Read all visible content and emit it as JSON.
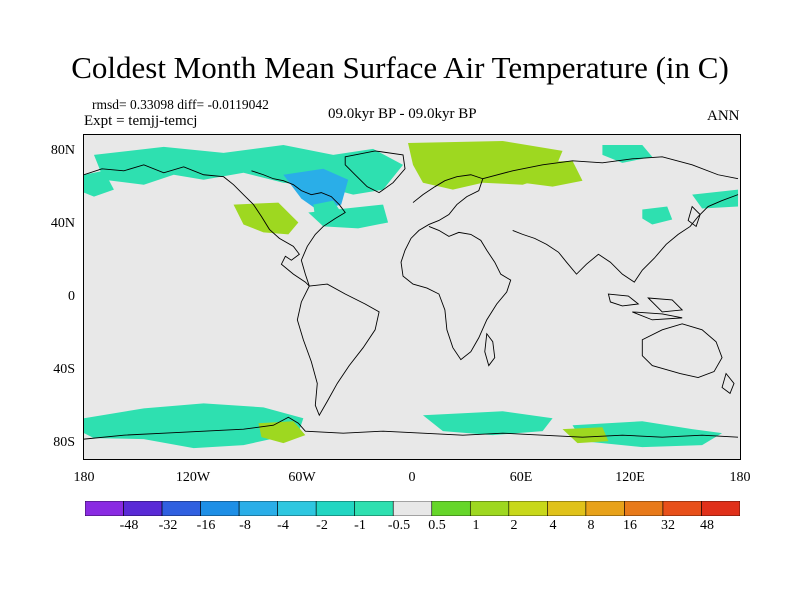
{
  "title": "Coldest Month Mean Surface Air Temperature (in C)",
  "stats": "rmsd= 0.33098 diff= -0.0119042",
  "expt": "Expt = temjj-temcj",
  "period": "09.0kyr BP - 09.0kyr BP",
  "season": "ANN",
  "lat_labels": [
    "80N",
    "40N",
    "0",
    "40S",
    "80S"
  ],
  "lon_labels": [
    "180",
    "120W",
    "60W",
    "0",
    "60E",
    "120E",
    "180"
  ],
  "colorbar": {
    "labels": [
      "-48",
      "-32",
      "-16",
      "-8",
      "-4",
      "-2",
      "-1",
      "-0.5",
      "0.5",
      "1",
      "2",
      "4",
      "8",
      "16",
      "32",
      "48"
    ],
    "colors": [
      "#8a2be2",
      "#5a2ad6",
      "#3060e0",
      "#1e8fe6",
      "#2aaee8",
      "#2ec7e0",
      "#22d6c2",
      "#2ee0b0",
      "#e8e8e8",
      "#66d62a",
      "#9ed820",
      "#c8d81a",
      "#e0c21a",
      "#e8a21a",
      "#e87a1a",
      "#e8501a",
      "#e0301a"
    ]
  },
  "map": {
    "background": "#e8e8e8",
    "negative_color": "#2ee0b0",
    "positive_color": "#9ed820",
    "strong_negative_color": "#2aaee8"
  }
}
